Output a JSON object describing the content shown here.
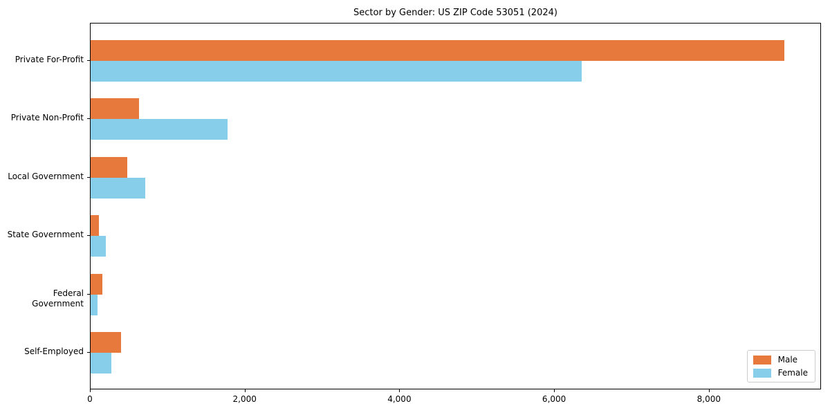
{
  "chart_data": {
    "type": "bar",
    "orientation": "horizontal",
    "title": "Sector by Gender: US ZIP Code 53051 (2024)",
    "categories": [
      "Private For-Profit",
      "Private Non-Profit",
      "Local Government",
      "State Government",
      "Federal Government",
      "Self-Employed"
    ],
    "series": [
      {
        "name": "Male",
        "color": "#E8793C",
        "values": [
          8980,
          625,
          475,
          105,
          150,
          390
        ]
      },
      {
        "name": "Female",
        "color": "#87CEEB",
        "values": [
          6360,
          1770,
          705,
          195,
          90,
          265
        ]
      }
    ],
    "xlabel": "",
    "ylabel": "",
    "xlim": [
      0,
      9450
    ],
    "xticks": [
      0,
      2000,
      4000,
      6000,
      8000
    ],
    "xtick_labels": [
      "0",
      "2,000",
      "4,000",
      "6,000",
      "8,000"
    ],
    "grid": false,
    "legend": {
      "position": "lower right",
      "entries": [
        "Male",
        "Female"
      ]
    },
    "colors": {
      "axis": "#000000",
      "background": "#ffffff",
      "legend_border": "#cccccc"
    }
  }
}
